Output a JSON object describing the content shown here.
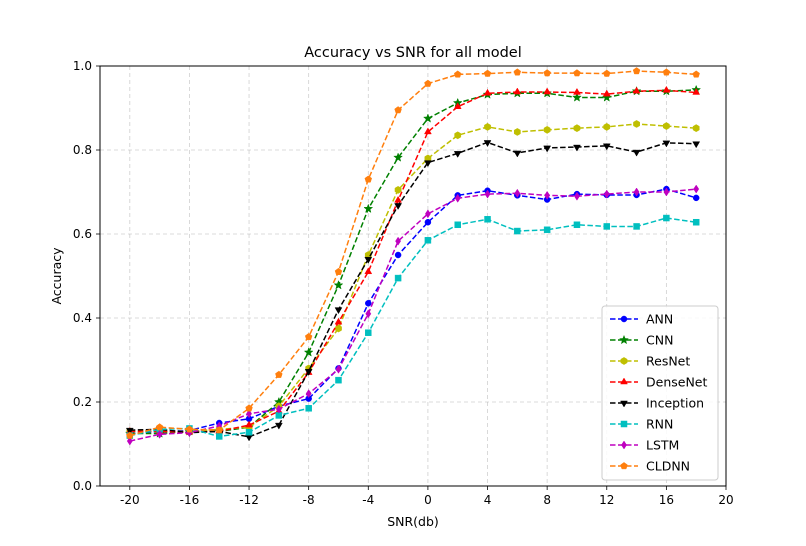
{
  "chart_data": {
    "type": "line",
    "title": "Accuracy vs SNR for all model",
    "xlabel": "SNR(db)",
    "ylabel": "Accuracy",
    "xlim": [
      -22,
      20
    ],
    "ylim": [
      0.0,
      1.0
    ],
    "xticks": [
      -20,
      -16,
      -12,
      -8,
      -4,
      0,
      4,
      8,
      12,
      16,
      20
    ],
    "yticks": [
      0.0,
      0.2,
      0.4,
      0.6,
      0.8,
      1.0
    ],
    "xtick_labels": [
      "-20",
      "-16",
      "-12",
      "-8",
      "-4",
      "0",
      "4",
      "8",
      "12",
      "16",
      "20"
    ],
    "ytick_labels": [
      "0.0",
      "0.2",
      "0.4",
      "0.6",
      "0.8",
      "1.0"
    ],
    "grid": true,
    "legend_position": "bottom-right",
    "x": [
      -20,
      -18,
      -16,
      -14,
      -12,
      -10,
      -8,
      -6,
      -4,
      -2,
      0,
      2,
      4,
      6,
      8,
      10,
      12,
      14,
      16,
      18
    ],
    "series": [
      {
        "name": "ANN",
        "color": "#0000ff",
        "marker": "circle",
        "values": [
          0.125,
          0.13,
          0.132,
          0.15,
          0.16,
          0.19,
          0.208,
          0.28,
          0.435,
          0.55,
          0.628,
          0.692,
          0.703,
          0.692,
          0.682,
          0.695,
          0.693,
          0.693,
          0.707,
          0.686
        ]
      },
      {
        "name": "CNN",
        "color": "#008000",
        "marker": "star",
        "values": [
          0.125,
          0.125,
          0.13,
          0.13,
          0.14,
          0.2,
          0.318,
          0.478,
          0.66,
          0.782,
          0.875,
          0.912,
          0.932,
          0.935,
          0.935,
          0.925,
          0.925,
          0.94,
          0.94,
          0.943
        ]
      },
      {
        "name": "ResNet",
        "color": "#bfbf00",
        "marker": "hexagon",
        "values": [
          0.13,
          0.13,
          0.13,
          0.135,
          0.14,
          0.19,
          0.28,
          0.375,
          0.55,
          0.705,
          0.78,
          0.835,
          0.855,
          0.843,
          0.848,
          0.852,
          0.855,
          0.862,
          0.857,
          0.852
        ]
      },
      {
        "name": "DenseNet",
        "color": "#ff0000",
        "marker": "triangle-up",
        "values": [
          0.13,
          0.13,
          0.128,
          0.13,
          0.145,
          0.178,
          0.27,
          0.39,
          0.51,
          0.68,
          0.843,
          0.903,
          0.935,
          0.938,
          0.938,
          0.937,
          0.933,
          0.94,
          0.942,
          0.937
        ]
      },
      {
        "name": "Inception",
        "color": "#000000",
        "marker": "triangle-down",
        "values": [
          0.133,
          0.135,
          0.127,
          0.13,
          0.117,
          0.145,
          0.273,
          0.42,
          0.54,
          0.668,
          0.77,
          0.792,
          0.818,
          0.793,
          0.805,
          0.807,
          0.81,
          0.795,
          0.817,
          0.815
        ]
      },
      {
        "name": "RNN",
        "color": "#00bfbf",
        "marker": "square",
        "values": [
          0.12,
          0.135,
          0.137,
          0.118,
          0.128,
          0.168,
          0.185,
          0.252,
          0.365,
          0.495,
          0.585,
          0.622,
          0.635,
          0.607,
          0.61,
          0.622,
          0.618,
          0.618,
          0.638,
          0.628
        ]
      },
      {
        "name": "LSTM",
        "color": "#bf00bf",
        "marker": "thin-diamond",
        "values": [
          0.107,
          0.123,
          0.127,
          0.143,
          0.172,
          0.183,
          0.22,
          0.278,
          0.41,
          0.583,
          0.648,
          0.685,
          0.695,
          0.697,
          0.692,
          0.69,
          0.695,
          0.7,
          0.7,
          0.707
        ]
      },
      {
        "name": "CLDNN",
        "color": "#ff7f0e",
        "marker": "pentagon",
        "values": [
          0.12,
          0.14,
          0.135,
          0.133,
          0.185,
          0.265,
          0.355,
          0.51,
          0.73,
          0.895,
          0.958,
          0.98,
          0.982,
          0.985,
          0.983,
          0.983,
          0.982,
          0.988,
          0.985,
          0.98
        ]
      }
    ]
  }
}
